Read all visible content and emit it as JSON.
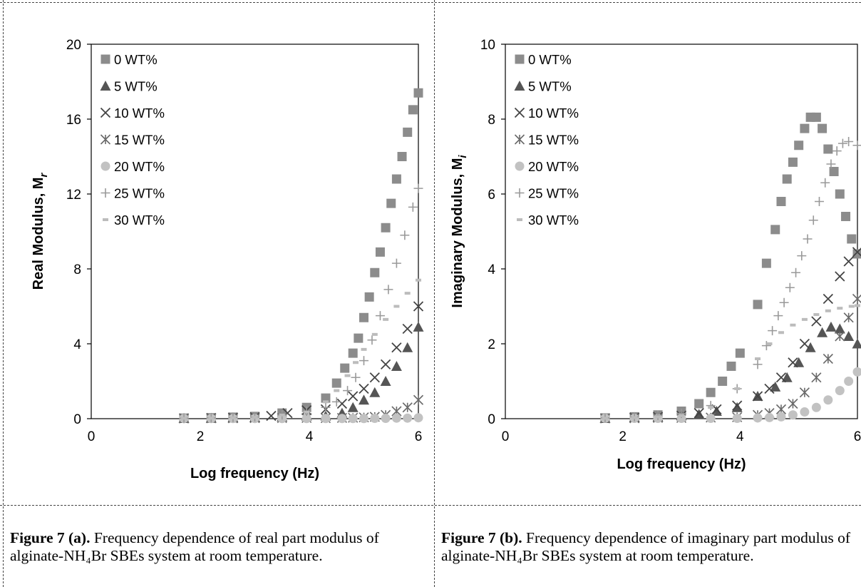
{
  "captions": [
    {
      "label": "Figure 7 (a).",
      "text": " Frequency dependence of real part modulus of alginate-NH₄Br SBEs system at room temperature."
    },
    {
      "label": "Figure 7 (b).",
      "text": " Frequency dependence of imaginary part modulus of alginate-NH₄Br SBEs system at room temperature."
    }
  ],
  "chart_data": [
    {
      "type": "scatter",
      "title": "",
      "xlabel": "Log frequency (Hz)",
      "ylabel": "Real Modulus, M",
      "ylabel_subscript": "r",
      "xlim": [
        0,
        6
      ],
      "ylim": [
        0,
        20
      ],
      "xticks": [
        "0",
        "2",
        "4",
        "6"
      ],
      "yticks": [
        "0",
        "4",
        "8",
        "12",
        "16",
        "20"
      ],
      "grid": false,
      "legend_position": "top-left",
      "series": [
        {
          "name": "0 WT%",
          "marker": "square",
          "color": "#8c8c8c",
          "points": [
            [
              1.7,
              0.03
            ],
            [
              2.2,
              0.05
            ],
            [
              2.6,
              0.08
            ],
            [
              3.0,
              0.12
            ],
            [
              3.5,
              0.3
            ],
            [
              3.95,
              0.6
            ],
            [
              4.3,
              1.1
            ],
            [
              4.5,
              1.9
            ],
            [
              4.65,
              2.7
            ],
            [
              4.8,
              3.5
            ],
            [
              4.9,
              4.3
            ],
            [
              5.0,
              5.4
            ],
            [
              5.1,
              6.5
            ],
            [
              5.2,
              7.8
            ],
            [
              5.3,
              8.9
            ],
            [
              5.4,
              10.2
            ],
            [
              5.5,
              11.5
            ],
            [
              5.6,
              12.8
            ],
            [
              5.7,
              14.0
            ],
            [
              5.8,
              15.3
            ],
            [
              5.9,
              16.5
            ],
            [
              6.0,
              17.4
            ]
          ]
        },
        {
          "name": "5 WT%",
          "marker": "triangle",
          "color": "#555555",
          "points": [
            [
              1.7,
              0.02
            ],
            [
              2.2,
              0.03
            ],
            [
              2.6,
              0.05
            ],
            [
              3.0,
              0.06
            ],
            [
              3.5,
              0.1
            ],
            [
              3.95,
              0.15
            ],
            [
              4.3,
              0.15
            ],
            [
              4.6,
              0.3
            ],
            [
              4.8,
              0.6
            ],
            [
              5.0,
              1.0
            ],
            [
              5.2,
              1.4
            ],
            [
              5.4,
              2.0
            ],
            [
              5.6,
              2.8
            ],
            [
              5.8,
              3.8
            ],
            [
              6.0,
              4.9
            ]
          ]
        },
        {
          "name": "10 WT%",
          "marker": "x",
          "color": "#444444",
          "points": [
            [
              1.7,
              0.02
            ],
            [
              2.2,
              0.04
            ],
            [
              2.6,
              0.06
            ],
            [
              3.0,
              0.08
            ],
            [
              3.3,
              0.15
            ],
            [
              3.6,
              0.3
            ],
            [
              3.95,
              0.45
            ],
            [
              4.3,
              0.5
            ],
            [
              4.6,
              0.8
            ],
            [
              4.8,
              1.2
            ],
            [
              5.0,
              1.6
            ],
            [
              5.2,
              2.2
            ],
            [
              5.4,
              2.9
            ],
            [
              5.6,
              3.8
            ],
            [
              5.8,
              4.8
            ],
            [
              6.0,
              6.0
            ]
          ]
        },
        {
          "name": "15 WT%",
          "marker": "asterisk",
          "color": "#6a6a6a",
          "points": [
            [
              1.7,
              0.01
            ],
            [
              2.2,
              0.02
            ],
            [
              2.6,
              0.02
            ],
            [
              3.0,
              0.03
            ],
            [
              3.5,
              0.03
            ],
            [
              3.95,
              0.04
            ],
            [
              4.3,
              0.03
            ],
            [
              4.6,
              0.04
            ],
            [
              4.8,
              0.05
            ],
            [
              5.0,
              0.07
            ],
            [
              5.2,
              0.1
            ],
            [
              5.4,
              0.2
            ],
            [
              5.6,
              0.4
            ],
            [
              5.8,
              0.6
            ],
            [
              6.0,
              1.0
            ]
          ]
        },
        {
          "name": "20 WT%",
          "marker": "circle",
          "color": "#c2c2c2",
          "points": [
            [
              1.7,
              0.01
            ],
            [
              2.2,
              0.01
            ],
            [
              2.6,
              0.01
            ],
            [
              3.0,
              0.01
            ],
            [
              3.5,
              0.01
            ],
            [
              3.95,
              0.01
            ],
            [
              4.3,
              0.01
            ],
            [
              4.6,
              0.01
            ],
            [
              4.8,
              0.01
            ],
            [
              5.0,
              0.01
            ],
            [
              5.2,
              0.02
            ],
            [
              5.4,
              0.02
            ],
            [
              5.6,
              0.03
            ],
            [
              5.8,
              0.03
            ],
            [
              6.0,
              0.05
            ]
          ]
        },
        {
          "name": "25 WT%",
          "marker": "plus",
          "color": "#999999",
          "points": [
            [
              1.7,
              0.02
            ],
            [
              2.2,
              0.04
            ],
            [
              2.6,
              0.06
            ],
            [
              3.0,
              0.09
            ],
            [
              3.5,
              0.2
            ],
            [
              3.95,
              0.4
            ],
            [
              4.3,
              0.6
            ],
            [
              4.5,
              0.9
            ],
            [
              4.7,
              1.5
            ],
            [
              4.85,
              2.2
            ],
            [
              5.0,
              3.1
            ],
            [
              5.15,
              4.2
            ],
            [
              5.3,
              5.5
            ],
            [
              5.45,
              6.9
            ],
            [
              5.6,
              8.3
            ],
            [
              5.75,
              9.8
            ],
            [
              5.9,
              11.3
            ],
            [
              6.0,
              12.3
            ]
          ]
        },
        {
          "name": "30 WT%",
          "marker": "dash",
          "color": "#bcbcbc",
          "points": [
            [
              1.7,
              0.02
            ],
            [
              2.2,
              0.03
            ],
            [
              2.6,
              0.05
            ],
            [
              3.0,
              0.07
            ],
            [
              3.5,
              0.2
            ],
            [
              3.95,
              0.35
            ],
            [
              4.3,
              0.9
            ],
            [
              4.5,
              1.5
            ],
            [
              4.7,
              2.3
            ],
            [
              4.85,
              3.0
            ],
            [
              5.0,
              3.7
            ],
            [
              5.2,
              4.5
            ],
            [
              5.4,
              5.3
            ],
            [
              5.6,
              6.0
            ],
            [
              5.8,
              6.7
            ],
            [
              6.0,
              7.4
            ]
          ]
        }
      ]
    },
    {
      "type": "scatter",
      "title": "",
      "xlabel": "Log frequency (Hz)",
      "ylabel": "Imaginary Modulus, M",
      "ylabel_subscript": "i",
      "xlim": [
        0,
        6
      ],
      "ylim": [
        0,
        10
      ],
      "xticks": [
        "0",
        "2",
        "4",
        "6"
      ],
      "yticks": [
        "0",
        "2",
        "4",
        "6",
        "8",
        "10"
      ],
      "grid": false,
      "legend_position": "top-left",
      "series": [
        {
          "name": "0 WT%",
          "marker": "square",
          "color": "#8c8c8c",
          "points": [
            [
              1.7,
              0.02
            ],
            [
              2.2,
              0.05
            ],
            [
              2.6,
              0.1
            ],
            [
              3.0,
              0.2
            ],
            [
              3.3,
              0.4
            ],
            [
              3.5,
              0.7
            ],
            [
              3.7,
              1.0
            ],
            [
              3.85,
              1.4
            ],
            [
              4.0,
              1.75
            ],
            [
              4.3,
              3.05
            ],
            [
              4.45,
              4.15
            ],
            [
              4.6,
              5.05
            ],
            [
              4.7,
              5.8
            ],
            [
              4.8,
              6.4
            ],
            [
              4.9,
              6.85
            ],
            [
              5.0,
              7.3
            ],
            [
              5.1,
              7.75
            ],
            [
              5.2,
              8.05
            ],
            [
              5.3,
              8.05
            ],
            [
              5.4,
              7.75
            ],
            [
              5.5,
              7.2
            ],
            [
              5.6,
              6.6
            ],
            [
              5.7,
              6.0
            ],
            [
              5.8,
              5.4
            ],
            [
              5.9,
              4.8
            ],
            [
              6.0,
              4.4
            ]
          ]
        },
        {
          "name": "5 WT%",
          "marker": "triangle",
          "color": "#555555",
          "points": [
            [
              1.7,
              0.01
            ],
            [
              2.2,
              0.03
            ],
            [
              2.6,
              0.05
            ],
            [
              3.0,
              0.08
            ],
            [
              3.3,
              0.12
            ],
            [
              3.6,
              0.2
            ],
            [
              3.95,
              0.3
            ],
            [
              4.3,
              0.6
            ],
            [
              4.6,
              0.85
            ],
            [
              4.8,
              1.1
            ],
            [
              5.0,
              1.5
            ],
            [
              5.2,
              1.9
            ],
            [
              5.4,
              2.3
            ],
            [
              5.55,
              2.45
            ],
            [
              5.7,
              2.4
            ],
            [
              5.85,
              2.2
            ],
            [
              6.0,
              2.0
            ]
          ]
        },
        {
          "name": "10 WT%",
          "marker": "x",
          "color": "#444444",
          "points": [
            [
              1.7,
              0.01
            ],
            [
              2.2,
              0.03
            ],
            [
              2.6,
              0.05
            ],
            [
              3.0,
              0.08
            ],
            [
              3.3,
              0.15
            ],
            [
              3.6,
              0.25
            ],
            [
              3.95,
              0.35
            ],
            [
              4.3,
              0.6
            ],
            [
              4.5,
              0.8
            ],
            [
              4.7,
              1.1
            ],
            [
              4.9,
              1.5
            ],
            [
              5.1,
              2.0
            ],
            [
              5.3,
              2.6
            ],
            [
              5.5,
              3.2
            ],
            [
              5.7,
              3.8
            ],
            [
              5.85,
              4.2
            ],
            [
              6.0,
              4.45
            ]
          ]
        },
        {
          "name": "15 WT%",
          "marker": "asterisk",
          "color": "#6a6a6a",
          "points": [
            [
              1.7,
              0.01
            ],
            [
              2.2,
              0.01
            ],
            [
              2.6,
              0.02
            ],
            [
              3.0,
              0.02
            ],
            [
              3.5,
              0.03
            ],
            [
              3.95,
              0.04
            ],
            [
              4.3,
              0.1
            ],
            [
              4.5,
              0.15
            ],
            [
              4.7,
              0.25
            ],
            [
              4.9,
              0.4
            ],
            [
              5.1,
              0.7
            ],
            [
              5.3,
              1.1
            ],
            [
              5.5,
              1.6
            ],
            [
              5.7,
              2.2
            ],
            [
              5.85,
              2.7
            ],
            [
              6.0,
              3.2
            ]
          ]
        },
        {
          "name": "20 WT%",
          "marker": "circle",
          "color": "#c2c2c2",
          "points": [
            [
              1.7,
              0.01
            ],
            [
              2.2,
              0.01
            ],
            [
              2.6,
              0.01
            ],
            [
              3.0,
              0.01
            ],
            [
              3.5,
              0.01
            ],
            [
              3.95,
              0.01
            ],
            [
              4.3,
              0.02
            ],
            [
              4.5,
              0.03
            ],
            [
              4.7,
              0.05
            ],
            [
              4.9,
              0.1
            ],
            [
              5.1,
              0.18
            ],
            [
              5.3,
              0.3
            ],
            [
              5.5,
              0.5
            ],
            [
              5.7,
              0.75
            ],
            [
              5.85,
              1.0
            ],
            [
              6.0,
              1.25
            ]
          ]
        },
        {
          "name": "25 WT%",
          "marker": "plus",
          "color": "#999999",
          "points": [
            [
              1.7,
              0.02
            ],
            [
              2.2,
              0.05
            ],
            [
              2.6,
              0.09
            ],
            [
              3.0,
              0.14
            ],
            [
              3.5,
              0.35
            ],
            [
              3.95,
              0.8
            ],
            [
              4.3,
              1.45
            ],
            [
              4.45,
              1.95
            ],
            [
              4.55,
              2.35
            ],
            [
              4.65,
              2.75
            ],
            [
              4.75,
              3.1
            ],
            [
              4.85,
              3.5
            ],
            [
              4.95,
              3.9
            ],
            [
              5.05,
              4.35
            ],
            [
              5.15,
              4.8
            ],
            [
              5.25,
              5.3
            ],
            [
              5.35,
              5.8
            ],
            [
              5.45,
              6.3
            ],
            [
              5.55,
              6.8
            ],
            [
              5.65,
              7.15
            ],
            [
              5.75,
              7.35
            ],
            [
              5.85,
              7.4
            ],
            [
              6.0,
              7.3
            ]
          ]
        },
        {
          "name": "30 WT%",
          "marker": "dash",
          "color": "#bcbcbc",
          "points": [
            [
              1.7,
              0.01
            ],
            [
              2.2,
              0.03
            ],
            [
              2.6,
              0.05
            ],
            [
              3.0,
              0.08
            ],
            [
              3.5,
              0.3
            ],
            [
              3.95,
              0.8
            ],
            [
              4.3,
              1.6
            ],
            [
              4.5,
              2.0
            ],
            [
              4.7,
              2.3
            ],
            [
              4.9,
              2.5
            ],
            [
              5.1,
              2.65
            ],
            [
              5.3,
              2.78
            ],
            [
              5.5,
              2.88
            ],
            [
              5.7,
              2.95
            ],
            [
              5.9,
              3.0
            ],
            [
              6.0,
              3.02
            ]
          ]
        }
      ]
    }
  ]
}
